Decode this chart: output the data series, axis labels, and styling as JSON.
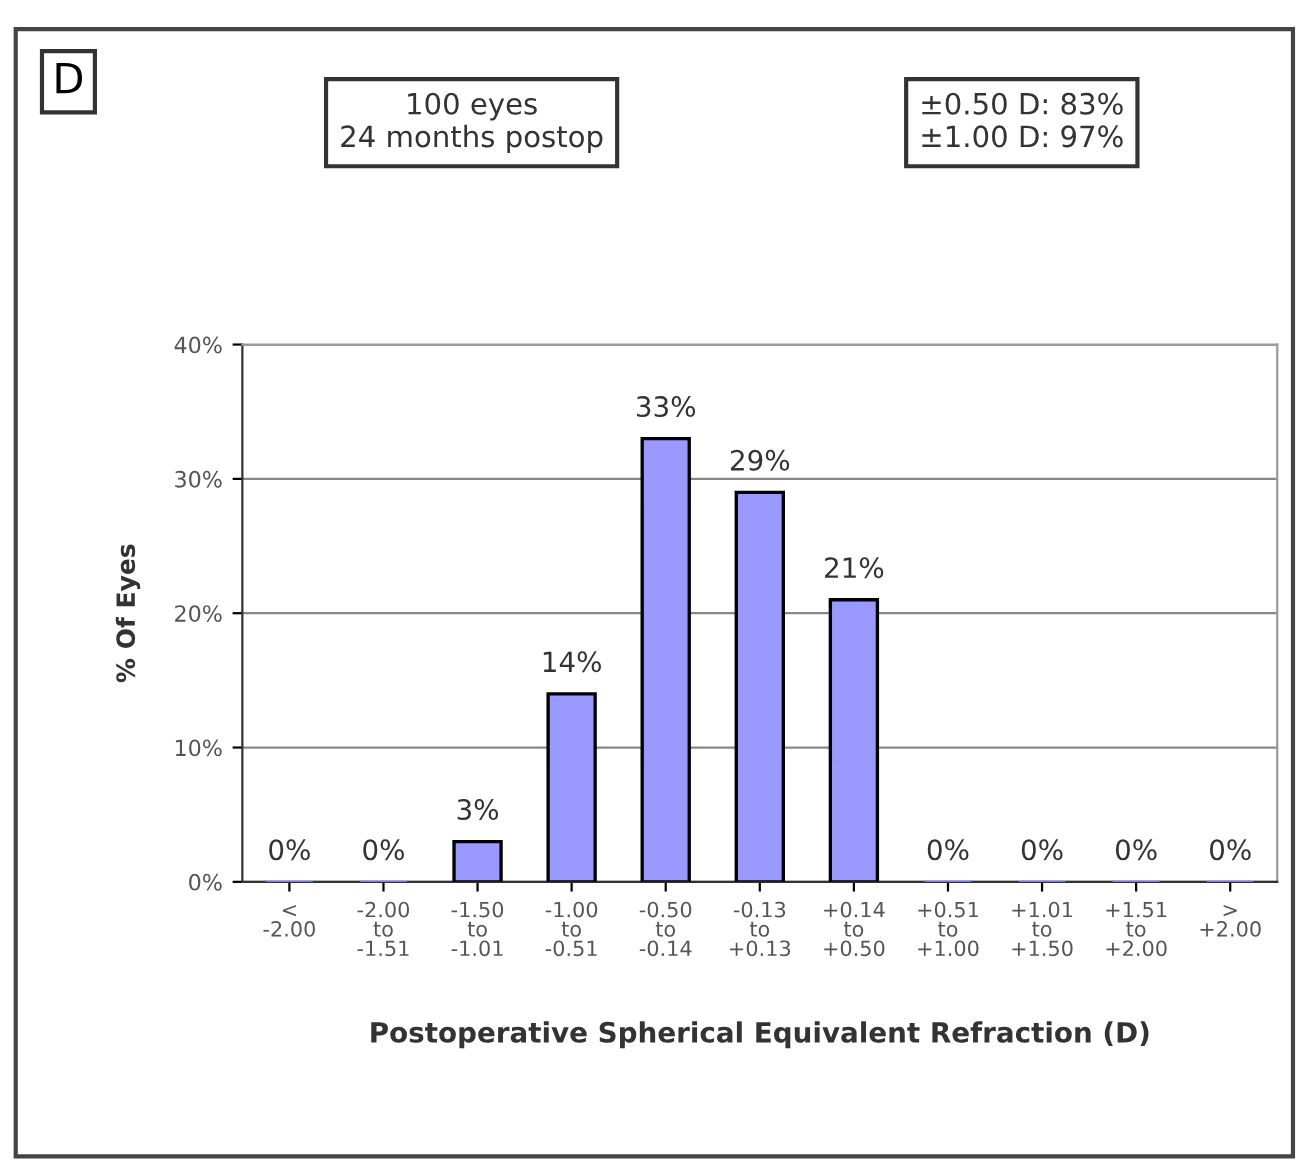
{
  "chart_data": {
    "type": "bar",
    "title": "D",
    "xlabel": "Postoperative Spherical Equivalent Refraction (D)",
    "ylabel": "% Of Eyes",
    "annotations": [
      "100 eyes\n24 months postop",
      "±0.50 D: 83%\n±1.00 D: 97%"
    ],
    "categories": [
      "<\n-2.00",
      "-2.00\nto\n-1.51",
      "-1.50\nto\n-1.01",
      "-1.00\nto\n-0.51",
      "-0.50\nto\n-0.14",
      "-0.13\nto\n+0.13",
      "+0.14\nto\n+0.50",
      "+0.51\nto\n+1.00",
      "+1.01\nto\n+1.50",
      "+1.51\nto\n+2.00",
      ">\n+2.00"
    ],
    "values": [
      0,
      0,
      3,
      14,
      33,
      29,
      21,
      0,
      0,
      0,
      0
    ],
    "value_labels": [
      "0%",
      "0%",
      "3%",
      "14%",
      "33%",
      "29%",
      "21%",
      "0%",
      "0%",
      "0%",
      "0%"
    ],
    "color": "#9999ff",
    "ylim": [
      0,
      40
    ],
    "yticks": [
      {
        "value": 0,
        "label": "0%"
      },
      {
        "value": 10,
        "label": "10%"
      },
      {
        "value": 20,
        "label": "20%"
      },
      {
        "value": 30,
        "label": "30%"
      },
      {
        "value": 40,
        "label": "40%"
      }
    ],
    "grid": "y",
    "legend": false
  }
}
